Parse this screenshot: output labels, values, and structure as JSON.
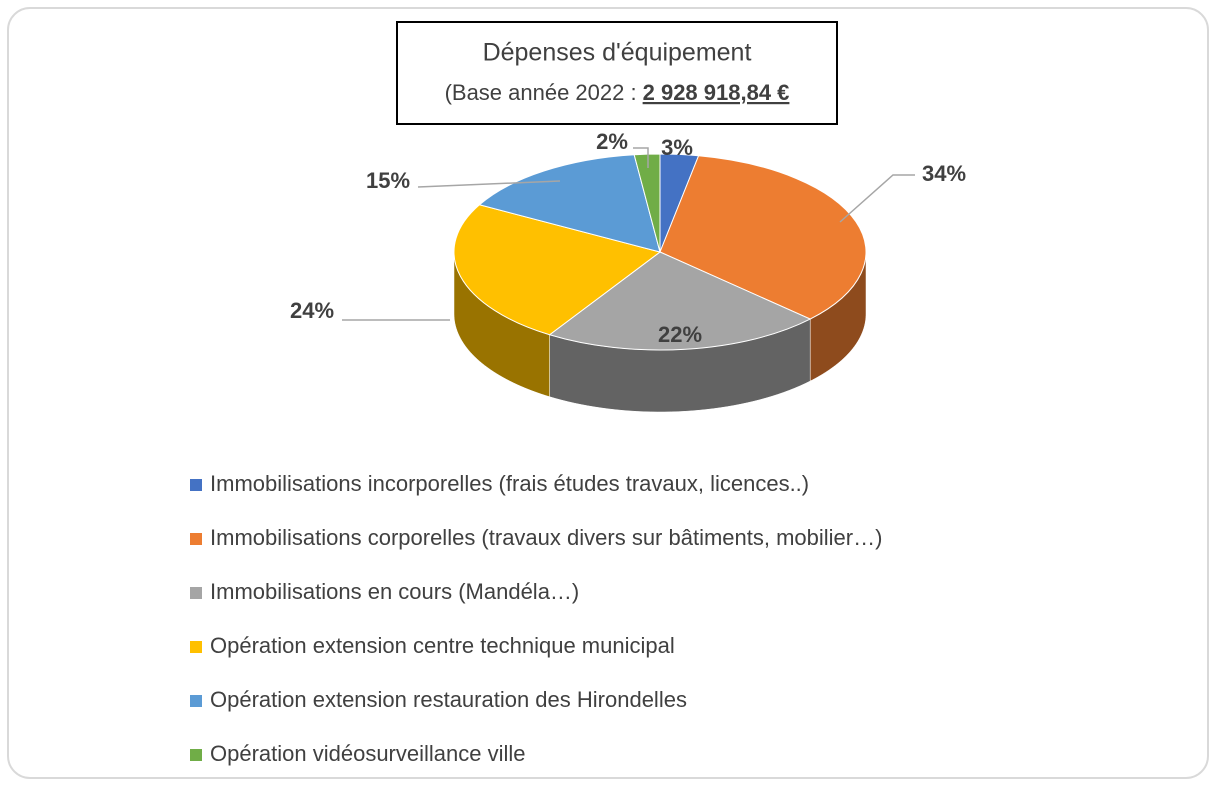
{
  "chart_data": {
    "type": "pie",
    "title": "Dépenses d'équipement",
    "subtitle": "(Base année 2022 :",
    "subtitle_amount": "2 928 918,84 €",
    "categories": [
      "Immobilisations incorporelles (frais études travaux, licences..)",
      "Immobilisations corporelles (travaux divers sur bâtiments, mobilier…)",
      "Immobilisations en cours (Mandéla…)",
      "Opération extension centre technique municipal",
      "Opération extension restauration des Hirondelles",
      "Opération vidéosurveillance  ville"
    ],
    "values": [
      3,
      34,
      22,
      24,
      15,
      2
    ],
    "value_labels": [
      "3%",
      "34%",
      "22%",
      "24%",
      "15%",
      "2%"
    ],
    "colors": [
      "#4472c4",
      "#ed7d31",
      "#a5a5a5",
      "#ffc000",
      "#5b9bd5",
      "#70ad47"
    ],
    "legend": "bottom"
  }
}
